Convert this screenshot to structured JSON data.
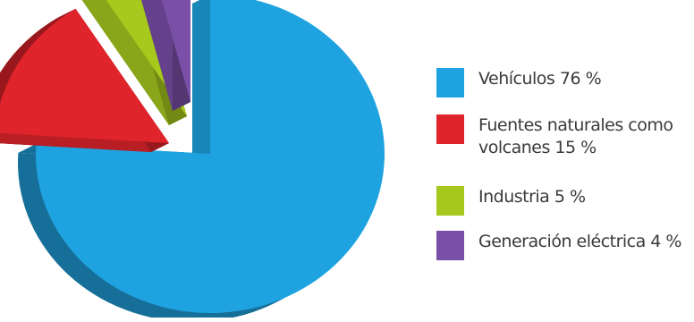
{
  "chart_data": {
    "type": "pie",
    "title": "",
    "style": "3d-exploded",
    "categories": [
      "Vehículos",
      "Fuentes naturales como volcanes",
      "Industria",
      "Generación eléctrica"
    ],
    "values": [
      76,
      15,
      5,
      4
    ],
    "unit": "%",
    "colors": [
      "#1fa3e0",
      "#e0242b",
      "#a7c91e",
      "#7a4fa8"
    ],
    "legend_position": "right",
    "legend": [
      {
        "label": "Vehículos 76 %",
        "color": "#1fa3e0"
      },
      {
        "label": "Fuentes naturales como volcanes 15 %",
        "color": "#e0242b"
      },
      {
        "label": "Industria 5 %",
        "color": "#a7c91e"
      },
      {
        "label": "Generación eléctrica 4 %",
        "color": "#7a4fa8"
      }
    ]
  }
}
